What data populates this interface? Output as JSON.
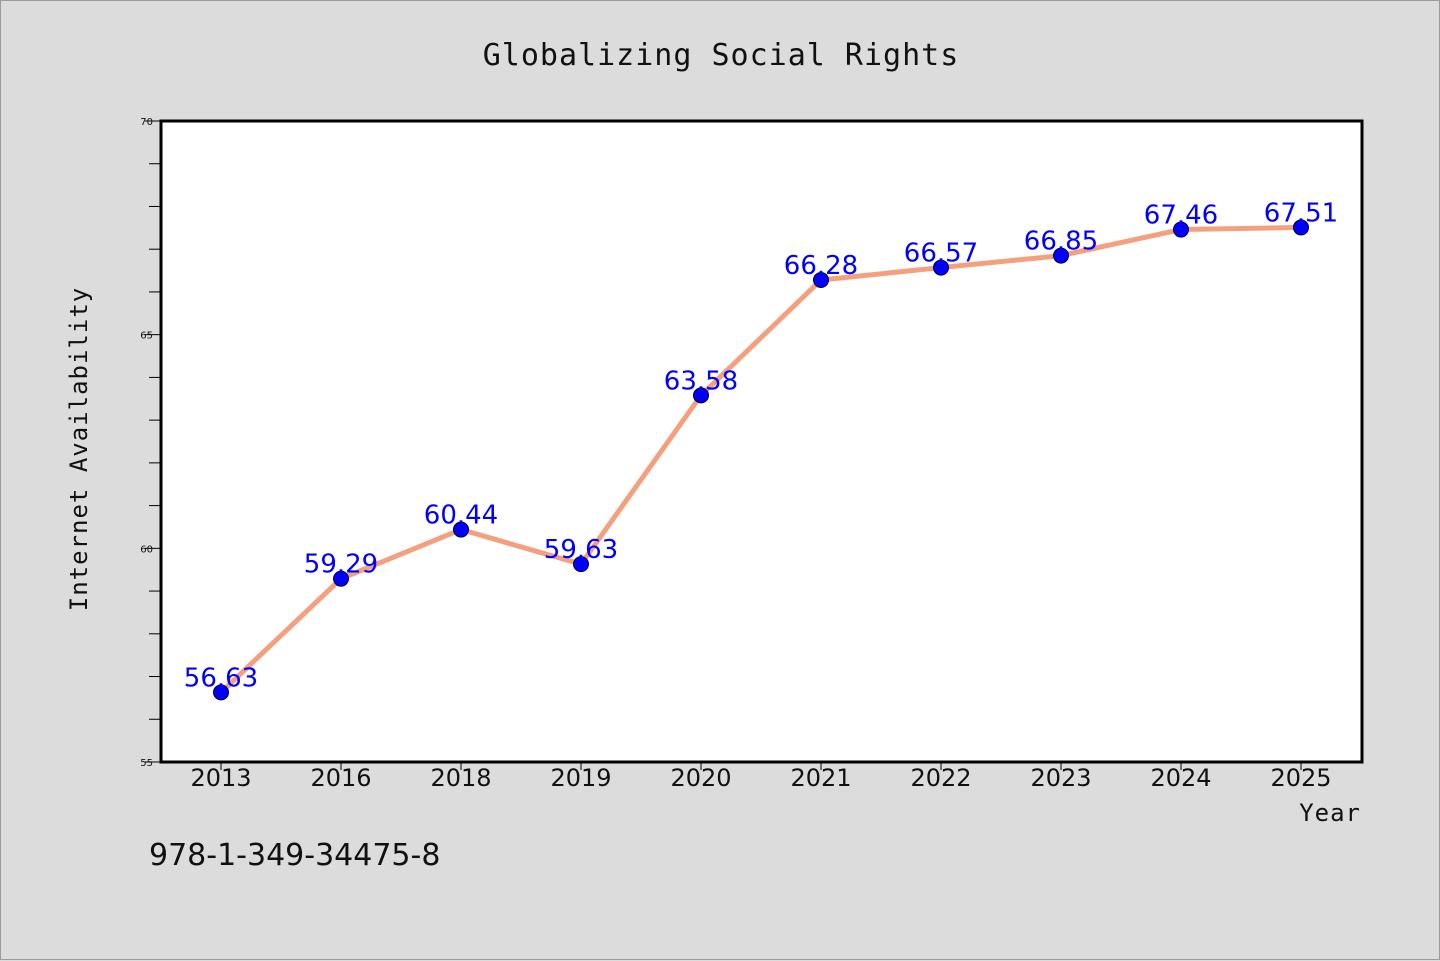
{
  "chart_data": {
    "type": "line",
    "title": "Globalizing Social Rights",
    "xlabel": "Year",
    "ylabel": "Internet Availability",
    "categories": [
      "2013",
      "2016",
      "2018",
      "2019",
      "2020",
      "2021",
      "2022",
      "2023",
      "2024",
      "2025"
    ],
    "series": [
      {
        "values": [
          56.63,
          59.29,
          60.44,
          59.63,
          63.58,
          66.28,
          66.57,
          66.85,
          67.46,
          67.51
        ],
        "labels": [
          "56.63",
          "59.29",
          "60.44",
          "59.63",
          "63.58",
          "66.28",
          "66.57",
          "66.85",
          "67.46",
          "67.51"
        ],
        "line_color": "#f4a07e",
        "marker_color": "#0000ff"
      }
    ],
    "ylim": [
      55,
      70
    ],
    "yticks": [
      "55",
      "60",
      "65",
      "70"
    ],
    "grid": false,
    "legend": "none"
  },
  "footer": {
    "isbn": "978-1-349-34475-8"
  }
}
